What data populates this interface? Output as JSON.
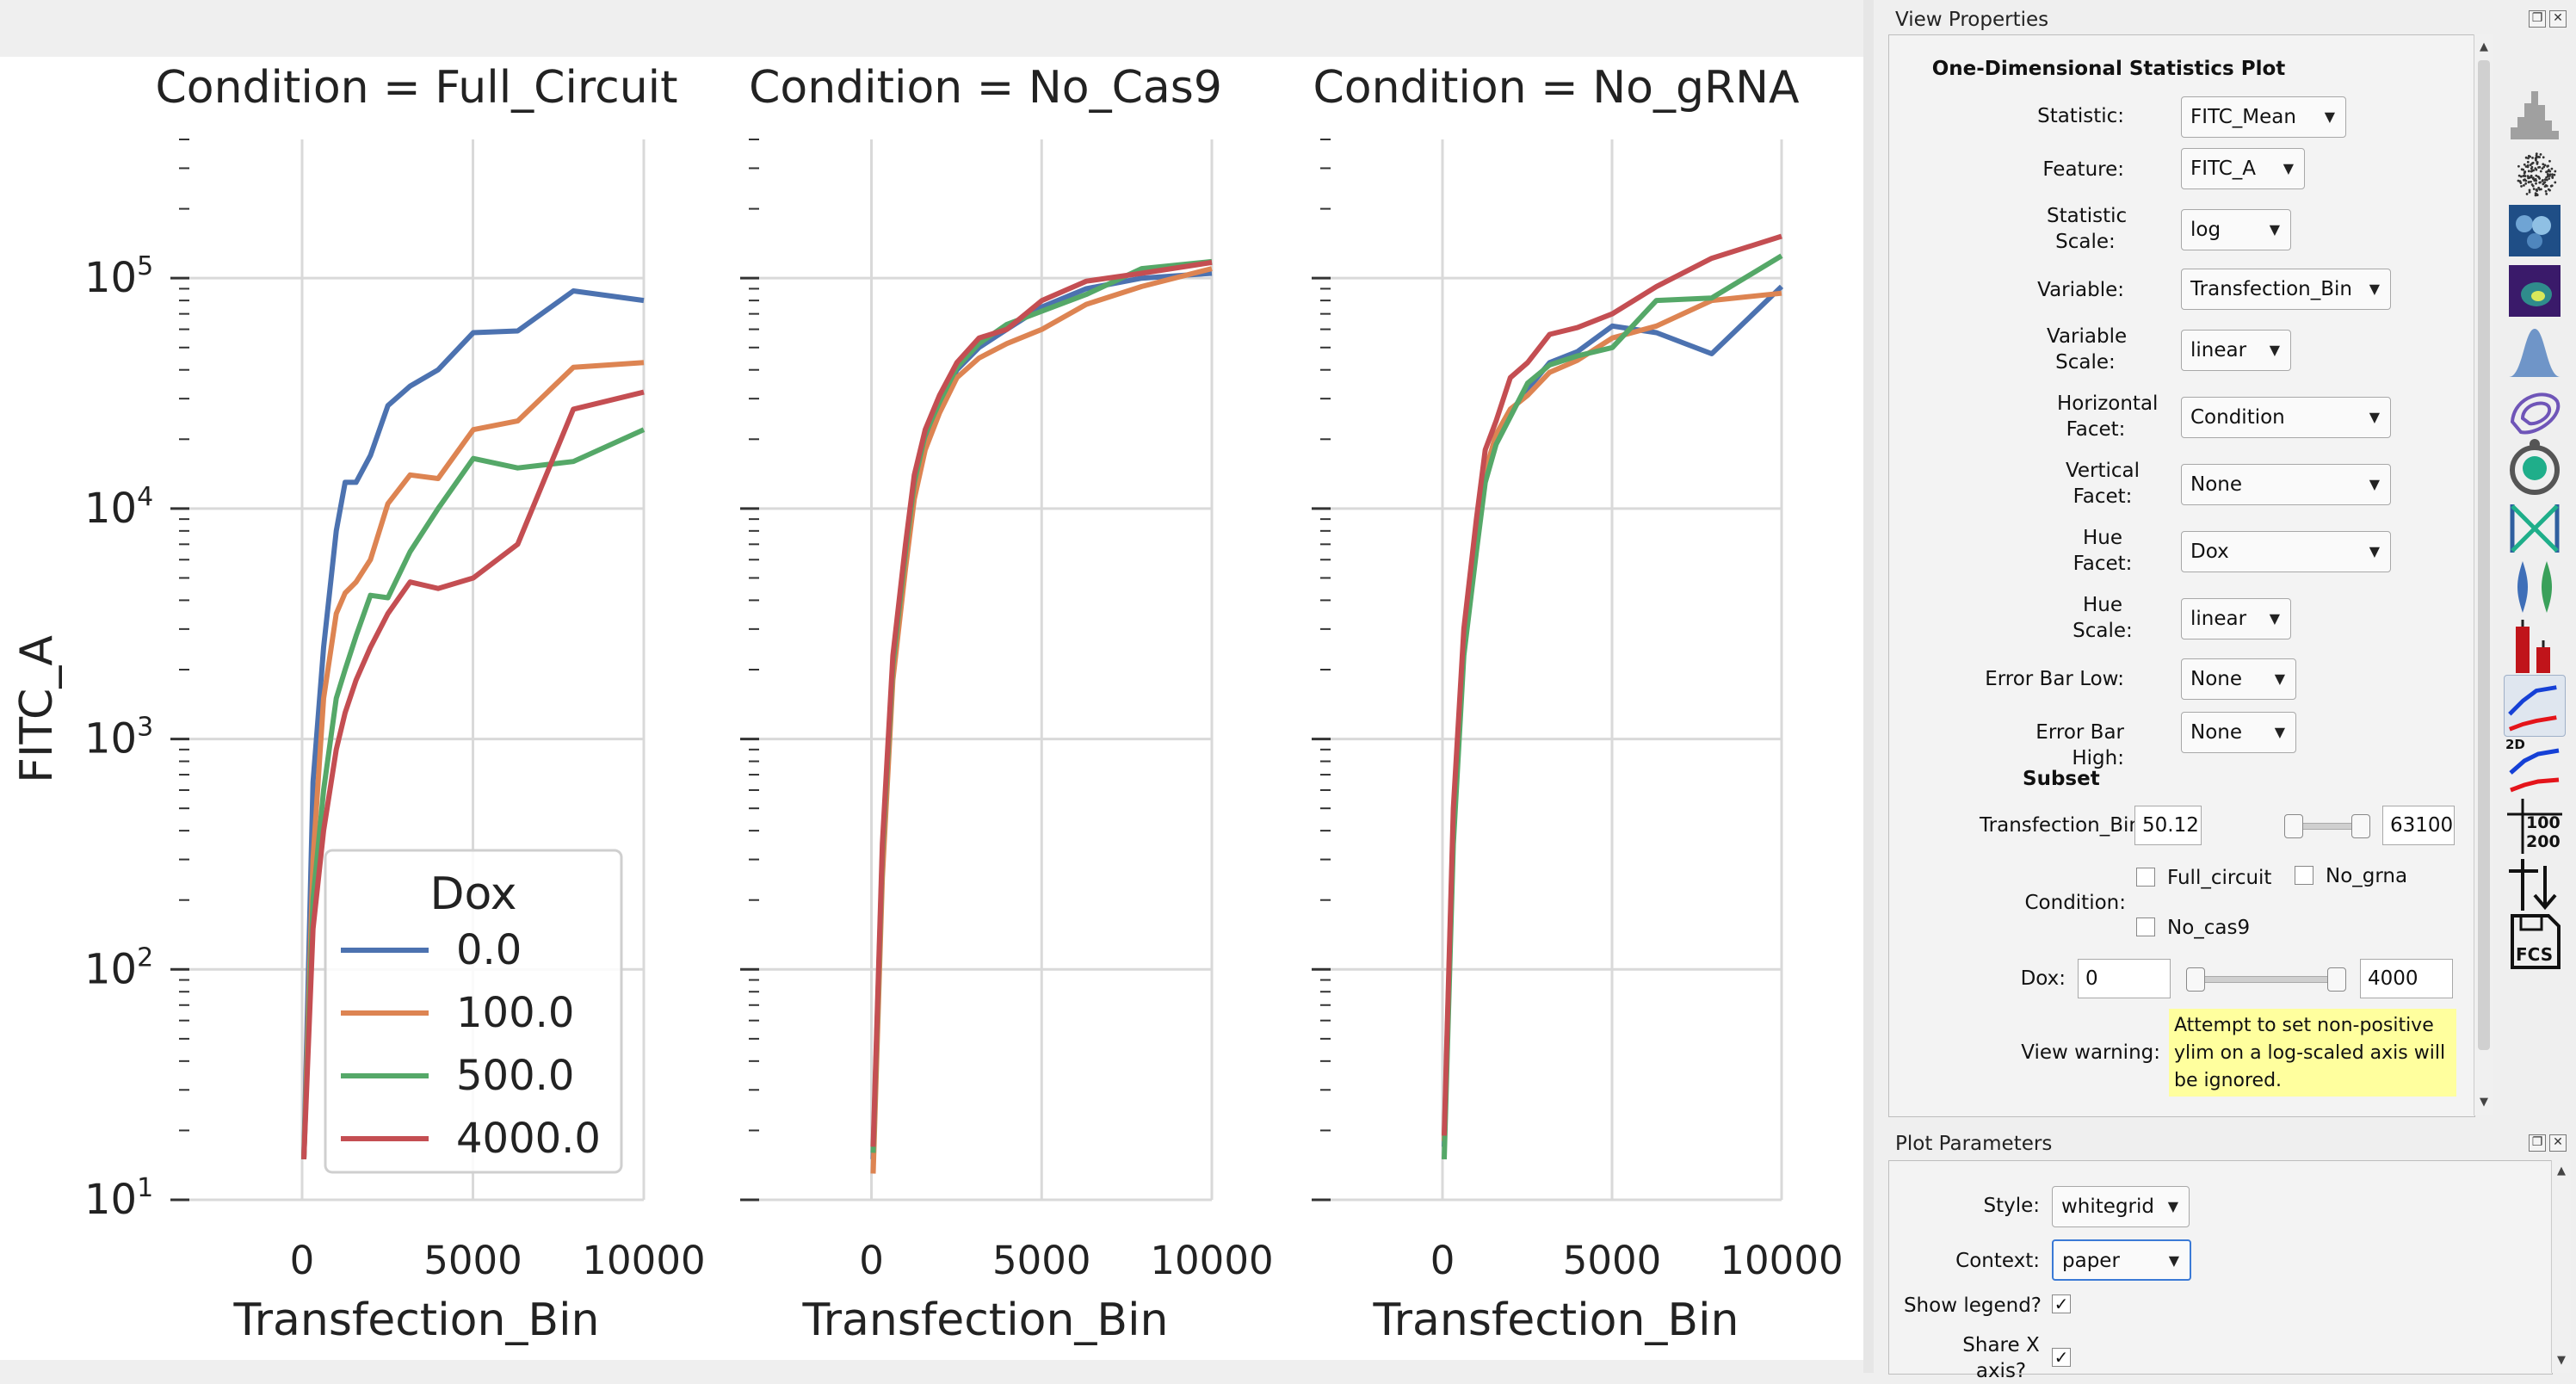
{
  "view_properties": {
    "title": "View Properties",
    "heading": "One-Dimensional Statistics Plot",
    "fields": [
      {
        "label": "Statistic:",
        "value": "FITC_Mean"
      },
      {
        "label": "Feature:",
        "value": "FITC_A"
      },
      {
        "label": "Statistic Scale:",
        "value": "log"
      },
      {
        "label": "Variable:",
        "value": "Transfection_Bin"
      },
      {
        "label": "Variable Scale:",
        "value": "linear"
      },
      {
        "label": "Horizontal Facet:",
        "value": "Condition"
      },
      {
        "label": "Vertical Facet:",
        "value": "None"
      },
      {
        "label": "Hue Facet:",
        "value": "Dox"
      },
      {
        "label": "Hue Scale:",
        "value": "linear"
      },
      {
        "label": "Error Bar Low:",
        "value": "None"
      },
      {
        "label": "Error Bar High:",
        "value": "None"
      }
    ],
    "subset": {
      "heading": "Subset",
      "transfection_bin": {
        "label": "Transfection_Bin:",
        "low": "50.12",
        "high": "63100"
      },
      "condition": {
        "label": "Condition:",
        "options": [
          "Full_circuit",
          "No_grna",
          "No_cas9"
        ]
      },
      "dox": {
        "label": "Dox:",
        "low": "0",
        "high": "4000"
      }
    },
    "warning": {
      "label": "View warning:",
      "text": "Attempt to set non-positive ylim on a log-scaled axis will be ignored."
    }
  },
  "toolbar": {
    "tools": [
      "histogram-icon",
      "scatterplot-icon",
      "hexbin-icon",
      "density-2d-icon",
      "kde-icon",
      "contour-icon",
      "violin-scatter-icon",
      "parallel-coordinates-icon",
      "violin-icon",
      "bar-chart-icon",
      "stats-1d-icon",
      "stats-2d-icon",
      "table-icon",
      "export-icon",
      "fcs-icon"
    ],
    "stats2d_label": "2D",
    "table_values": [
      "100",
      "200"
    ],
    "fcs_label": "FCS"
  },
  "plot_parameters": {
    "title": "Plot Parameters",
    "style": {
      "label": "Style:",
      "value": "whitegrid"
    },
    "context": {
      "label": "Context:",
      "value": "paper"
    },
    "show_legend": {
      "label": "Show legend?",
      "checked": "✓"
    },
    "share_x": {
      "label": "Share X axis?",
      "checked": "✓"
    }
  },
  "chart_data": {
    "type": "line",
    "ylabel": "FITC_A",
    "xlabel": "Transfection_Bin",
    "yscale": "log",
    "ylim": [
      10,
      400000
    ],
    "xlim": [
      -3300,
      10000
    ],
    "x_ticks": [
      "0",
      "5000",
      "10000"
    ],
    "y_ticks": [
      {
        "base": "10",
        "exp": "1"
      },
      {
        "base": "10",
        "exp": "2"
      },
      {
        "base": "10",
        "exp": "3"
      },
      {
        "base": "10",
        "exp": "4"
      },
      {
        "base": "10",
        "exp": "5"
      }
    ],
    "legend": {
      "title": "Dox",
      "position": "lower-right of first facet"
    },
    "series_colors": [
      "#4c72b0",
      "#dd8452",
      "#55a868",
      "#c44e52"
    ],
    "series_names": [
      "0.0",
      "100.0",
      "500.0",
      "4000.0"
    ],
    "x": [
      50,
      320,
      630,
      1000,
      1260,
      1580,
      2000,
      2510,
      3160,
      3980,
      5010,
      6310,
      7940,
      10000
    ],
    "facets": [
      {
        "title": "Condition = Full_Circuit",
        "series": [
          {
            "name": "0.0",
            "values": [
              15,
              650,
              2500,
              8000,
              13000,
              13000,
              17000,
              28000,
              34000,
              40000,
              58000,
              59000,
              88000,
              80000
            ]
          },
          {
            "name": "100.0",
            "values": [
              15,
              300,
              1500,
              3500,
              4300,
              4800,
              6000,
              10500,
              14000,
              13500,
              22000,
              24000,
              41000,
              43000
            ]
          },
          {
            "name": "500.0",
            "values": [
              15,
              200,
              600,
              1500,
              2000,
              2800,
              4200,
              4100,
              6500,
              10000,
              16500,
              15000,
              16000,
              22000
            ]
          },
          {
            "name": "4000.0",
            "values": [
              15,
              150,
              400,
              900,
              1300,
              1800,
              2500,
              3500,
              4800,
              4500,
              5000,
              7000,
              27000,
              32000
            ]
          }
        ]
      },
      {
        "title": "Condition = No_Cas9",
        "series": [
          {
            "name": "0.0",
            "values": [
              15,
              300,
              2000,
              6000,
              12000,
              20000,
              28000,
              40000,
              50000,
              60000,
              75000,
              90000,
              100000,
              105000
            ]
          },
          {
            "name": "100.0",
            "values": [
              13,
              250,
              1800,
              5500,
              11000,
              18000,
              26000,
              37000,
              45000,
              52000,
              60000,
              77000,
              92000,
              110000
            ]
          },
          {
            "name": "500.0",
            "values": [
              16,
              320,
              2100,
              6500,
              13000,
              21000,
              29000,
              41000,
              52000,
              63000,
              72000,
              85000,
              110000,
              118000
            ]
          },
          {
            "name": "4000.0",
            "values": [
              17,
              350,
              2300,
              7000,
              14000,
              22000,
              31000,
              43000,
              55000,
              60000,
              80000,
              97000,
              105000,
              117000
            ]
          }
        ]
      },
      {
        "title": "Condition = No_gRNA",
        "series": [
          {
            "name": "0.0",
            "values": [
              17,
              400,
              2500,
              7000,
              14000,
              20000,
              26000,
              33000,
              43000,
              48000,
              62000,
              58000,
              47000,
              92000
            ]
          },
          {
            "name": "100.0",
            "values": [
              18,
              450,
              2700,
              7500,
              14500,
              21000,
              27000,
              31000,
              39000,
              44000,
              55000,
              62000,
              80000,
              86000
            ]
          },
          {
            "name": "500.0",
            "values": [
              15,
              350,
              2300,
              6500,
              13000,
              19000,
              25000,
              35000,
              42000,
              46000,
              50000,
              80000,
              82000,
              125000
            ]
          },
          {
            "name": "4000.0",
            "values": [
              19,
              500,
              3000,
              9000,
              18000,
              24000,
              37000,
              43000,
              57000,
              61000,
              70000,
              92000,
              122000,
              152000
            ]
          }
        ]
      }
    ]
  }
}
